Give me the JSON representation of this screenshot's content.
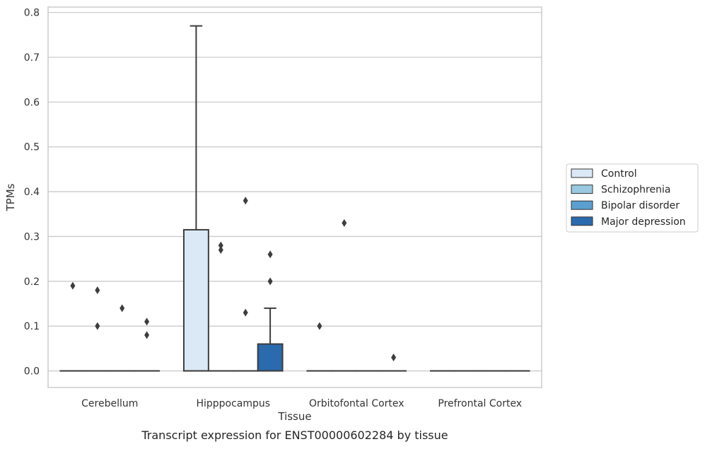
{
  "caption": "Transcript expression for ENST00000602284 by tissue",
  "chart_data": {
    "type": "box",
    "title": "",
    "xlabel": "Tissue",
    "ylabel": "TPMs",
    "ylim": [
      -0.037,
      0.812
    ],
    "yticks": [
      0.0,
      0.1,
      0.2,
      0.3,
      0.4,
      0.5,
      0.6,
      0.7,
      0.8
    ],
    "ytick_labels": [
      "0.0",
      "0.1",
      "0.2",
      "0.3",
      "0.4",
      "0.5",
      "0.6",
      "0.7",
      "0.8"
    ],
    "grid": "horizontal",
    "legend_position": "right",
    "categories": [
      "Cerebellum",
      "Hipppocampus",
      "Orbitofontal Cortex",
      "Prefrontal Cortex"
    ],
    "series": [
      {
        "name": "Control",
        "color": "#dbe9f6",
        "boxes": [
          {
            "q1": 0,
            "median": 0,
            "q3": 0,
            "whisker_low": 0,
            "whisker_high": 0,
            "outliers": [
              0.19
            ]
          },
          {
            "q1": 0,
            "median": 0,
            "q3": 0.315,
            "whisker_low": 0,
            "whisker_high": 0.77,
            "outliers": []
          },
          {
            "q1": 0,
            "median": 0,
            "q3": 0,
            "whisker_low": 0,
            "whisker_high": 0,
            "outliers": [
              0.1
            ]
          },
          {
            "q1": 0,
            "median": 0,
            "q3": 0,
            "whisker_low": 0,
            "whisker_high": 0,
            "outliers": []
          }
        ]
      },
      {
        "name": "Schizophrenia",
        "color": "#9ac8e0",
        "boxes": [
          {
            "q1": 0,
            "median": 0,
            "q3": 0,
            "whisker_low": 0,
            "whisker_high": 0,
            "outliers": [
              0.18,
              0.1
            ]
          },
          {
            "q1": 0,
            "median": 0,
            "q3": 0,
            "whisker_low": 0,
            "whisker_high": 0,
            "outliers": [
              0.28,
              0.27
            ]
          },
          {
            "q1": 0,
            "median": 0,
            "q3": 0,
            "whisker_low": 0,
            "whisker_high": 0,
            "outliers": [
              0.33
            ]
          },
          {
            "q1": 0,
            "median": 0,
            "q3": 0,
            "whisker_low": 0,
            "whisker_high": 0,
            "outliers": []
          }
        ]
      },
      {
        "name": "Bipolar disorder",
        "color": "#5a9fcf",
        "boxes": [
          {
            "q1": 0,
            "median": 0,
            "q3": 0,
            "whisker_low": 0,
            "whisker_high": 0,
            "outliers": [
              0.14
            ]
          },
          {
            "q1": 0,
            "median": 0,
            "q3": 0,
            "whisker_low": 0,
            "whisker_high": 0,
            "outliers": [
              0.38,
              0.13
            ]
          },
          {
            "q1": 0,
            "median": 0,
            "q3": 0,
            "whisker_low": 0,
            "whisker_high": 0,
            "outliers": []
          },
          {
            "q1": 0,
            "median": 0,
            "q3": 0,
            "whisker_low": 0,
            "whisker_high": 0,
            "outliers": []
          }
        ]
      },
      {
        "name": "Major depression",
        "color": "#2a6aad",
        "boxes": [
          {
            "q1": 0,
            "median": 0,
            "q3": 0,
            "whisker_low": 0,
            "whisker_high": 0,
            "outliers": [
              0.11,
              0.08
            ]
          },
          {
            "q1": 0,
            "median": 0,
            "q3": 0.06,
            "whisker_low": 0,
            "whisker_high": 0.14,
            "outliers": [
              0.26,
              0.2
            ]
          },
          {
            "q1": 0,
            "median": 0,
            "q3": 0,
            "whisker_low": 0,
            "whisker_high": 0,
            "outliers": [
              0.03
            ]
          },
          {
            "q1": 0,
            "median": 0,
            "q3": 0,
            "whisker_low": 0,
            "whisker_high": 0,
            "outliers": []
          }
        ]
      }
    ]
  }
}
